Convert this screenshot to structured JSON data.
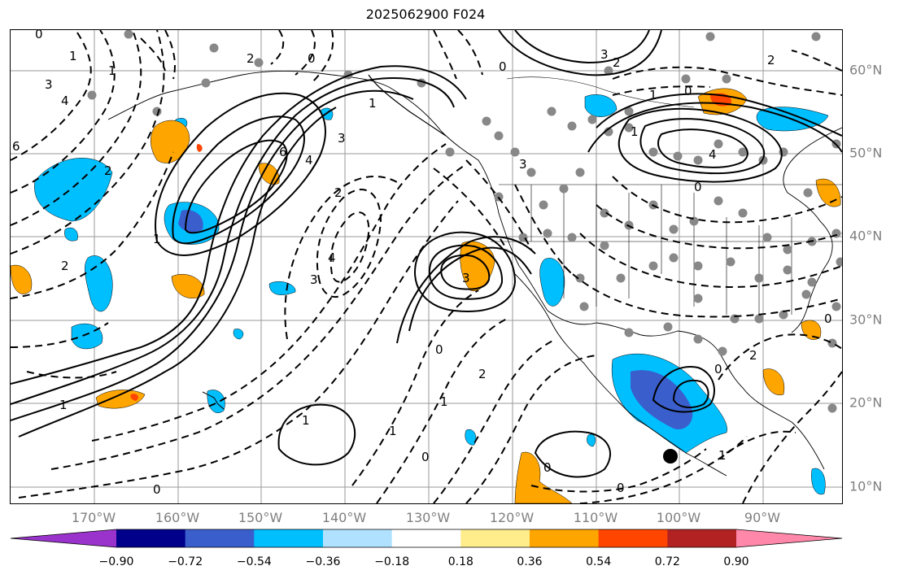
{
  "title": "2025062900 F024",
  "lat_labels": [
    "60°N",
    "50°N",
    "40°N",
    "30°N",
    "20°N",
    "10°N"
  ],
  "lon_labels": [
    "170°W",
    "160°W",
    "150°W",
    "140°W",
    "130°W",
    "120°W",
    "110°W",
    "100°W",
    "90°W"
  ],
  "colorbar": {
    "tick_labels": [
      "−0.90",
      "−0.72",
      "−0.54",
      "−0.36",
      "−0.18",
      "0.18",
      "0.36",
      "0.54",
      "0.72",
      "0.90"
    ],
    "colors": [
      "#9933cc",
      "#00008b",
      "#3a5fcd",
      "#00bfff",
      "#b0e2ff",
      "#ffffff",
      "#ffec8b",
      "#ffa500",
      "#ff4500",
      "#b22222",
      "#ff88aa"
    ]
  },
  "contour_labels": {
    "c1": "0",
    "c2": "1",
    "c3": "2",
    "c4": "3",
    "c5": "4",
    "c6": "6",
    "c7": "2",
    "c8": "1",
    "c9": "0",
    "c10": "3",
    "c11": "4",
    "c12": "3",
    "c13": "1",
    "c14": "2",
    "c15": "1",
    "c16": "0",
    "c17": "1",
    "c18": "0",
    "c19": "0",
    "c20": "3",
    "c21": "2",
    "c22": "1",
    "c23": "4",
    "c24": "0",
    "c25": "1",
    "c26": "6",
    "c27": "2",
    "c28": "3",
    "c29": "0",
    "c30": "4",
    "c31": "2",
    "c32": "1",
    "c33": "0",
    "c34": "2",
    "c35": "3",
    "c36": "0",
    "c37": "1",
    "c38": "0",
    "c39": "0",
    "c40": "2",
    "c41": "1",
    "c42": "0",
    "c43": "1"
  }
}
